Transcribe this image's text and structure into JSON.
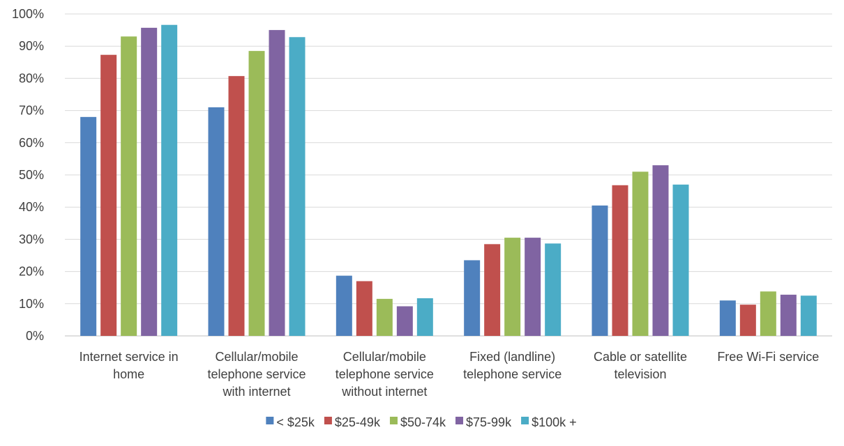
{
  "chart_data": {
    "type": "bar",
    "title": "",
    "xlabel": "",
    "ylabel": "",
    "ylim": [
      0,
      100
    ],
    "y_ticks": [
      "0%",
      "10%",
      "20%",
      "30%",
      "40%",
      "50%",
      "60%",
      "70%",
      "80%",
      "90%",
      "100%"
    ],
    "y_tick_values": [
      0,
      10,
      20,
      30,
      40,
      50,
      60,
      70,
      80,
      90,
      100
    ],
    "grid": true,
    "legend_position": "bottom",
    "categories": [
      [
        "Internet service in",
        "home"
      ],
      [
        "Cellular/mobile",
        "telephone service",
        "with internet"
      ],
      [
        "Cellular/mobile",
        "telephone service",
        "without internet"
      ],
      [
        "Fixed (landline)",
        "telephone service"
      ],
      [
        "Cable or satellite",
        "television"
      ],
      [
        "Free Wi-Fi service"
      ]
    ],
    "series": [
      {
        "name": "< $25k",
        "color": "#4F81BD",
        "values": [
          68,
          71,
          18.7,
          23.5,
          40.5,
          11
        ]
      },
      {
        "name": "$25-49k",
        "color": "#C0504D",
        "values": [
          87.3,
          80.7,
          17,
          28.5,
          46.8,
          9.7
        ]
      },
      {
        "name": "$50-74k",
        "color": "#9BBB59",
        "values": [
          93,
          88.5,
          11.5,
          30.5,
          51,
          13.8
        ]
      },
      {
        "name": "$75-99k",
        "color": "#8064A2",
        "values": [
          95.7,
          95,
          9.2,
          30.5,
          53,
          12.8
        ]
      },
      {
        "name": "$100k +",
        "color": "#4BACC6",
        "values": [
          96.6,
          92.8,
          11.7,
          28.7,
          47,
          12.5
        ]
      }
    ]
  }
}
